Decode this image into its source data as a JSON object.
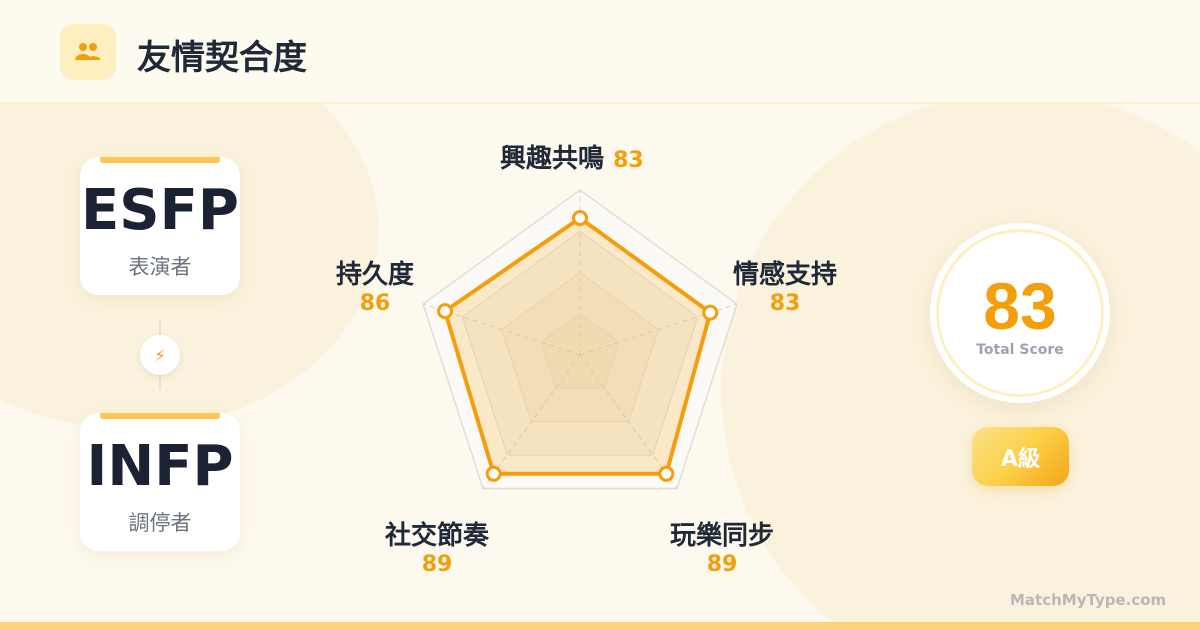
{
  "header": {
    "title": "友情契合度",
    "icon": "people-icon"
  },
  "cards": [
    {
      "type": "ESFP",
      "nickname": "表演者"
    },
    {
      "type": "INFP",
      "nickname": "調停者"
    }
  ],
  "connector_icon": "lightning-icon",
  "score": {
    "value": "83",
    "label": "Total Score"
  },
  "grade": "A級",
  "watermark": "MatchMyType.com",
  "colors": {
    "accent": "#f59e0b",
    "text": "#1f2937"
  },
  "chart_data": {
    "type": "radar",
    "categories": [
      "興趣共鳴",
      "情感支持",
      "玩樂同步",
      "社交節奏",
      "持久度"
    ],
    "values": [
      83,
      83,
      89,
      89,
      86
    ],
    "value_labels": [
      "83",
      "83",
      "89",
      "89",
      "86"
    ],
    "range": [
      0,
      100
    ],
    "grid_levels": [
      25,
      50,
      75,
      100
    ]
  }
}
